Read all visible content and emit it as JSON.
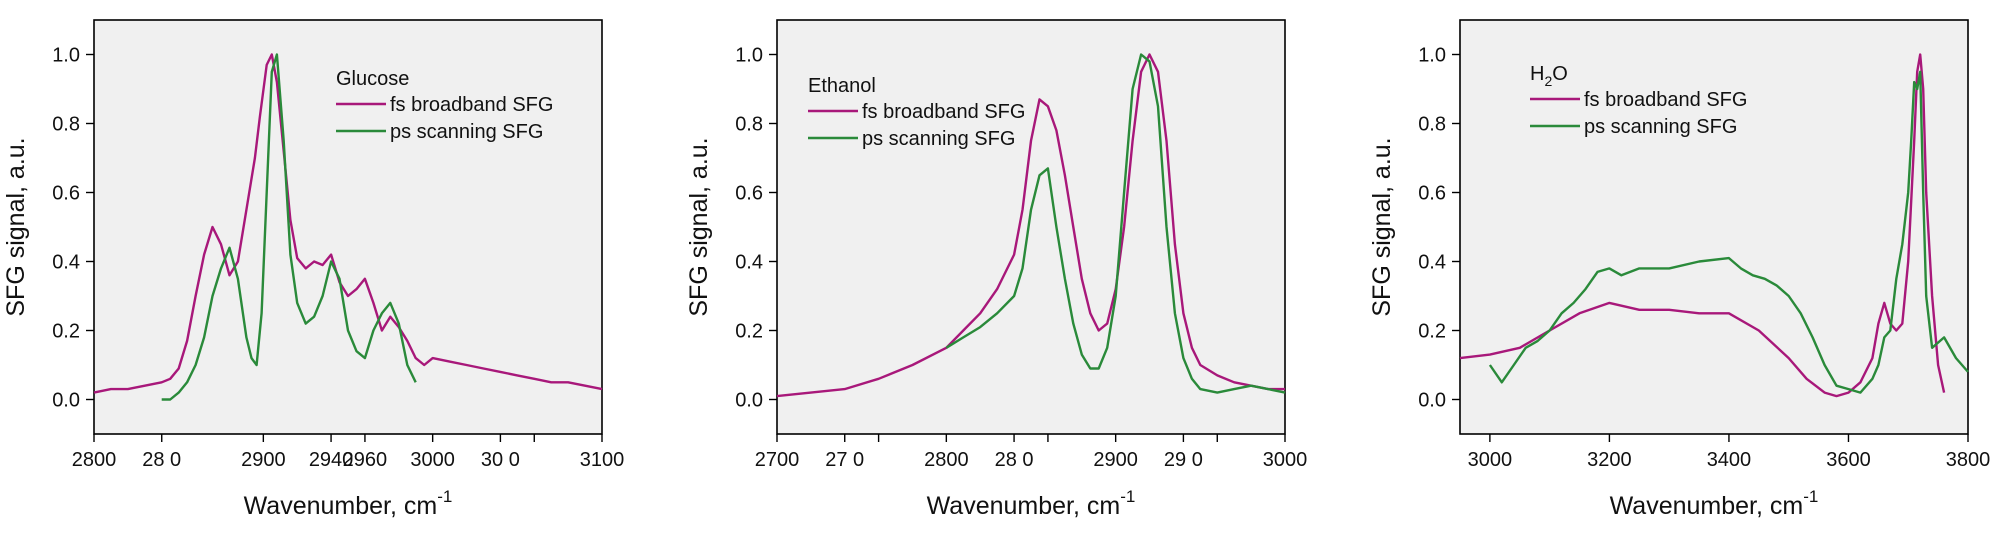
{
  "chart_data": [
    {
      "type": "line",
      "annotation": "Glucose",
      "xlabel": "Wavenumber, cm",
      "xlabel_sup": "-1",
      "ylabel": "SFG signal, a.u.",
      "xlim": [
        2800,
        3100
      ],
      "ylim": [
        -0.1,
        1.1
      ],
      "x_ticks": [
        2800,
        2840,
        2900,
        2940,
        2960,
        3000,
        3040,
        3060,
        3100
      ],
      "x_tick_labels": [
        "2800",
        "28 0",
        "2900",
        "2940",
        "2960",
        "3000",
        "30 0",
        "",
        "3100"
      ],
      "y_ticks": [
        0.0,
        0.2,
        0.4,
        0.6,
        0.8,
        1.0
      ],
      "y_tick_labels": [
        "0.0",
        "0.2",
        "0.4",
        "0.6",
        "0.8",
        "1.0"
      ],
      "grid": false,
      "legend_position": "top-center",
      "series": [
        {
          "name": "fs broadband SFG",
          "color": "#a8187a",
          "x": [
            2800,
            2810,
            2820,
            2830,
            2840,
            2845,
            2850,
            2855,
            2860,
            2865,
            2870,
            2875,
            2880,
            2885,
            2890,
            2895,
            2898,
            2902,
            2905,
            2908,
            2912,
            2916,
            2920,
            2925,
            2930,
            2935,
            2940,
            2945,
            2950,
            2955,
            2960,
            2965,
            2970,
            2975,
            2980,
            2985,
            2990,
            2995,
            3000,
            3010,
            3020,
            3030,
            3040,
            3050,
            3060,
            3070,
            3080,
            3090,
            3100
          ],
          "y": [
            0.02,
            0.03,
            0.03,
            0.04,
            0.05,
            0.06,
            0.09,
            0.17,
            0.3,
            0.42,
            0.5,
            0.45,
            0.36,
            0.4,
            0.55,
            0.7,
            0.82,
            0.97,
            1.0,
            0.92,
            0.72,
            0.52,
            0.41,
            0.38,
            0.4,
            0.39,
            0.42,
            0.34,
            0.3,
            0.32,
            0.35,
            0.28,
            0.2,
            0.24,
            0.21,
            0.17,
            0.12,
            0.1,
            0.12,
            0.11,
            0.1,
            0.09,
            0.08,
            0.07,
            0.06,
            0.05,
            0.05,
            0.04,
            0.03
          ]
        },
        {
          "name": "ps scanning SFG",
          "color": "#2a8a3a",
          "x": [
            2840,
            2845,
            2850,
            2855,
            2860,
            2865,
            2870,
            2875,
            2880,
            2885,
            2890,
            2893,
            2896,
            2899,
            2902,
            2905,
            2908,
            2912,
            2916,
            2920,
            2925,
            2930,
            2935,
            2940,
            2945,
            2950,
            2955,
            2960,
            2965,
            2970,
            2975,
            2980,
            2985,
            2990
          ],
          "y": [
            0.0,
            0.0,
            0.02,
            0.05,
            0.1,
            0.18,
            0.3,
            0.38,
            0.44,
            0.35,
            0.18,
            0.12,
            0.1,
            0.25,
            0.6,
            0.95,
            1.0,
            0.75,
            0.42,
            0.28,
            0.22,
            0.24,
            0.3,
            0.4,
            0.35,
            0.2,
            0.14,
            0.12,
            0.2,
            0.25,
            0.28,
            0.22,
            0.1,
            0.05
          ]
        }
      ]
    },
    {
      "type": "line",
      "annotation": "Ethanol",
      "xlabel": "Wavenumber, cm",
      "xlabel_sup": "-1",
      "ylabel": "SFG signal, a.u.",
      "xlim": [
        2700,
        3000
      ],
      "ylim": [
        -0.1,
        1.1
      ],
      "x_ticks": [
        2700,
        2740,
        2760,
        2800,
        2840,
        2860,
        2900,
        2940,
        2960,
        3000
      ],
      "x_tick_labels": [
        "2700",
        "27 0",
        "",
        "2800",
        "28 0",
        "",
        "2900",
        "29 0",
        "",
        "3000"
      ],
      "y_ticks": [
        0.0,
        0.2,
        0.4,
        0.6,
        0.8,
        1.0
      ],
      "y_tick_labels": [
        "0.0",
        "0.2",
        "0.4",
        "0.6",
        "0.8",
        "1.0"
      ],
      "grid": false,
      "legend_position": "top-left",
      "series": [
        {
          "name": "fs broadband SFG",
          "color": "#a8187a",
          "x": [
            2700,
            2720,
            2740,
            2760,
            2780,
            2800,
            2810,
            2820,
            2830,
            2840,
            2845,
            2850,
            2855,
            2860,
            2865,
            2870,
            2875,
            2880,
            2885,
            2890,
            2895,
            2900,
            2905,
            2910,
            2915,
            2920,
            2925,
            2930,
            2935,
            2940,
            2945,
            2950,
            2960,
            2970,
            2980,
            2990,
            3000
          ],
          "y": [
            0.01,
            0.02,
            0.03,
            0.06,
            0.1,
            0.15,
            0.2,
            0.25,
            0.32,
            0.42,
            0.55,
            0.75,
            0.87,
            0.85,
            0.78,
            0.65,
            0.5,
            0.35,
            0.25,
            0.2,
            0.22,
            0.32,
            0.5,
            0.75,
            0.95,
            1.0,
            0.95,
            0.75,
            0.45,
            0.25,
            0.15,
            0.1,
            0.07,
            0.05,
            0.04,
            0.03,
            0.03
          ]
        },
        {
          "name": "ps scanning SFG",
          "color": "#2a8a3a",
          "x": [
            2800,
            2810,
            2820,
            2830,
            2840,
            2845,
            2850,
            2855,
            2860,
            2865,
            2870,
            2875,
            2880,
            2885,
            2890,
            2895,
            2900,
            2905,
            2910,
            2915,
            2920,
            2925,
            2930,
            2935,
            2940,
            2945,
            2950,
            2960,
            2970,
            2980,
            2990,
            3000
          ],
          "y": [
            0.15,
            0.18,
            0.21,
            0.25,
            0.3,
            0.38,
            0.55,
            0.65,
            0.67,
            0.5,
            0.35,
            0.22,
            0.13,
            0.09,
            0.09,
            0.15,
            0.3,
            0.6,
            0.9,
            1.0,
            0.98,
            0.85,
            0.5,
            0.25,
            0.12,
            0.06,
            0.03,
            0.02,
            0.03,
            0.04,
            0.03,
            0.02
          ]
        }
      ]
    },
    {
      "type": "line",
      "annotation": "H",
      "annotation_sub": "2",
      "annotation_tail": "O",
      "xlabel": "Wavenumber, cm",
      "xlabel_sup": "-1",
      "ylabel": "SFG signal, a.u.",
      "xlim": [
        2950,
        3800
      ],
      "ylim": [
        -0.1,
        1.1
      ],
      "x_ticks": [
        3000,
        3200,
        3400,
        3600,
        3800
      ],
      "x_tick_labels": [
        "3000",
        "3200",
        "3400",
        "3600",
        "3800"
      ],
      "y_ticks": [
        0.0,
        0.2,
        0.4,
        0.6,
        0.8,
        1.0
      ],
      "y_tick_labels": [
        "0.0",
        "0.2",
        "0.4",
        "0.6",
        "0.8",
        "1.0"
      ],
      "grid": false,
      "legend_position": "top-left",
      "series": [
        {
          "name": "fs broadband SFG",
          "color": "#a8187a",
          "x": [
            2950,
            3000,
            3050,
            3100,
            3150,
            3200,
            3250,
            3300,
            3350,
            3400,
            3450,
            3500,
            3530,
            3560,
            3580,
            3600,
            3620,
            3640,
            3650,
            3660,
            3670,
            3680,
            3690,
            3700,
            3710,
            3715,
            3720,
            3725,
            3730,
            3740,
            3750,
            3760
          ],
          "y": [
            0.12,
            0.13,
            0.15,
            0.2,
            0.25,
            0.28,
            0.26,
            0.26,
            0.25,
            0.25,
            0.2,
            0.12,
            0.06,
            0.02,
            0.01,
            0.02,
            0.05,
            0.12,
            0.22,
            0.28,
            0.22,
            0.2,
            0.22,
            0.4,
            0.75,
            0.95,
            1.0,
            0.9,
            0.6,
            0.3,
            0.1,
            0.02
          ]
        },
        {
          "name": "ps scanning SFG",
          "color": "#2a8a3a",
          "x": [
            3000,
            3020,
            3040,
            3060,
            3080,
            3100,
            3120,
            3140,
            3160,
            3180,
            3200,
            3220,
            3250,
            3300,
            3350,
            3400,
            3420,
            3440,
            3460,
            3480,
            3500,
            3520,
            3540,
            3560,
            3580,
            3600,
            3620,
            3640,
            3650,
            3660,
            3670,
            3680,
            3690,
            3700,
            3705,
            3710,
            3715,
            3720,
            3725,
            3730,
            3740,
            3760,
            3780,
            3800
          ],
          "y": [
            0.1,
            0.05,
            0.1,
            0.15,
            0.17,
            0.2,
            0.25,
            0.28,
            0.32,
            0.37,
            0.38,
            0.36,
            0.38,
            0.38,
            0.4,
            0.41,
            0.38,
            0.36,
            0.35,
            0.33,
            0.3,
            0.25,
            0.18,
            0.1,
            0.04,
            0.03,
            0.02,
            0.06,
            0.1,
            0.18,
            0.2,
            0.35,
            0.45,
            0.6,
            0.75,
            0.92,
            0.9,
            0.95,
            0.6,
            0.3,
            0.15,
            0.18,
            0.12,
            0.08
          ]
        }
      ]
    }
  ]
}
